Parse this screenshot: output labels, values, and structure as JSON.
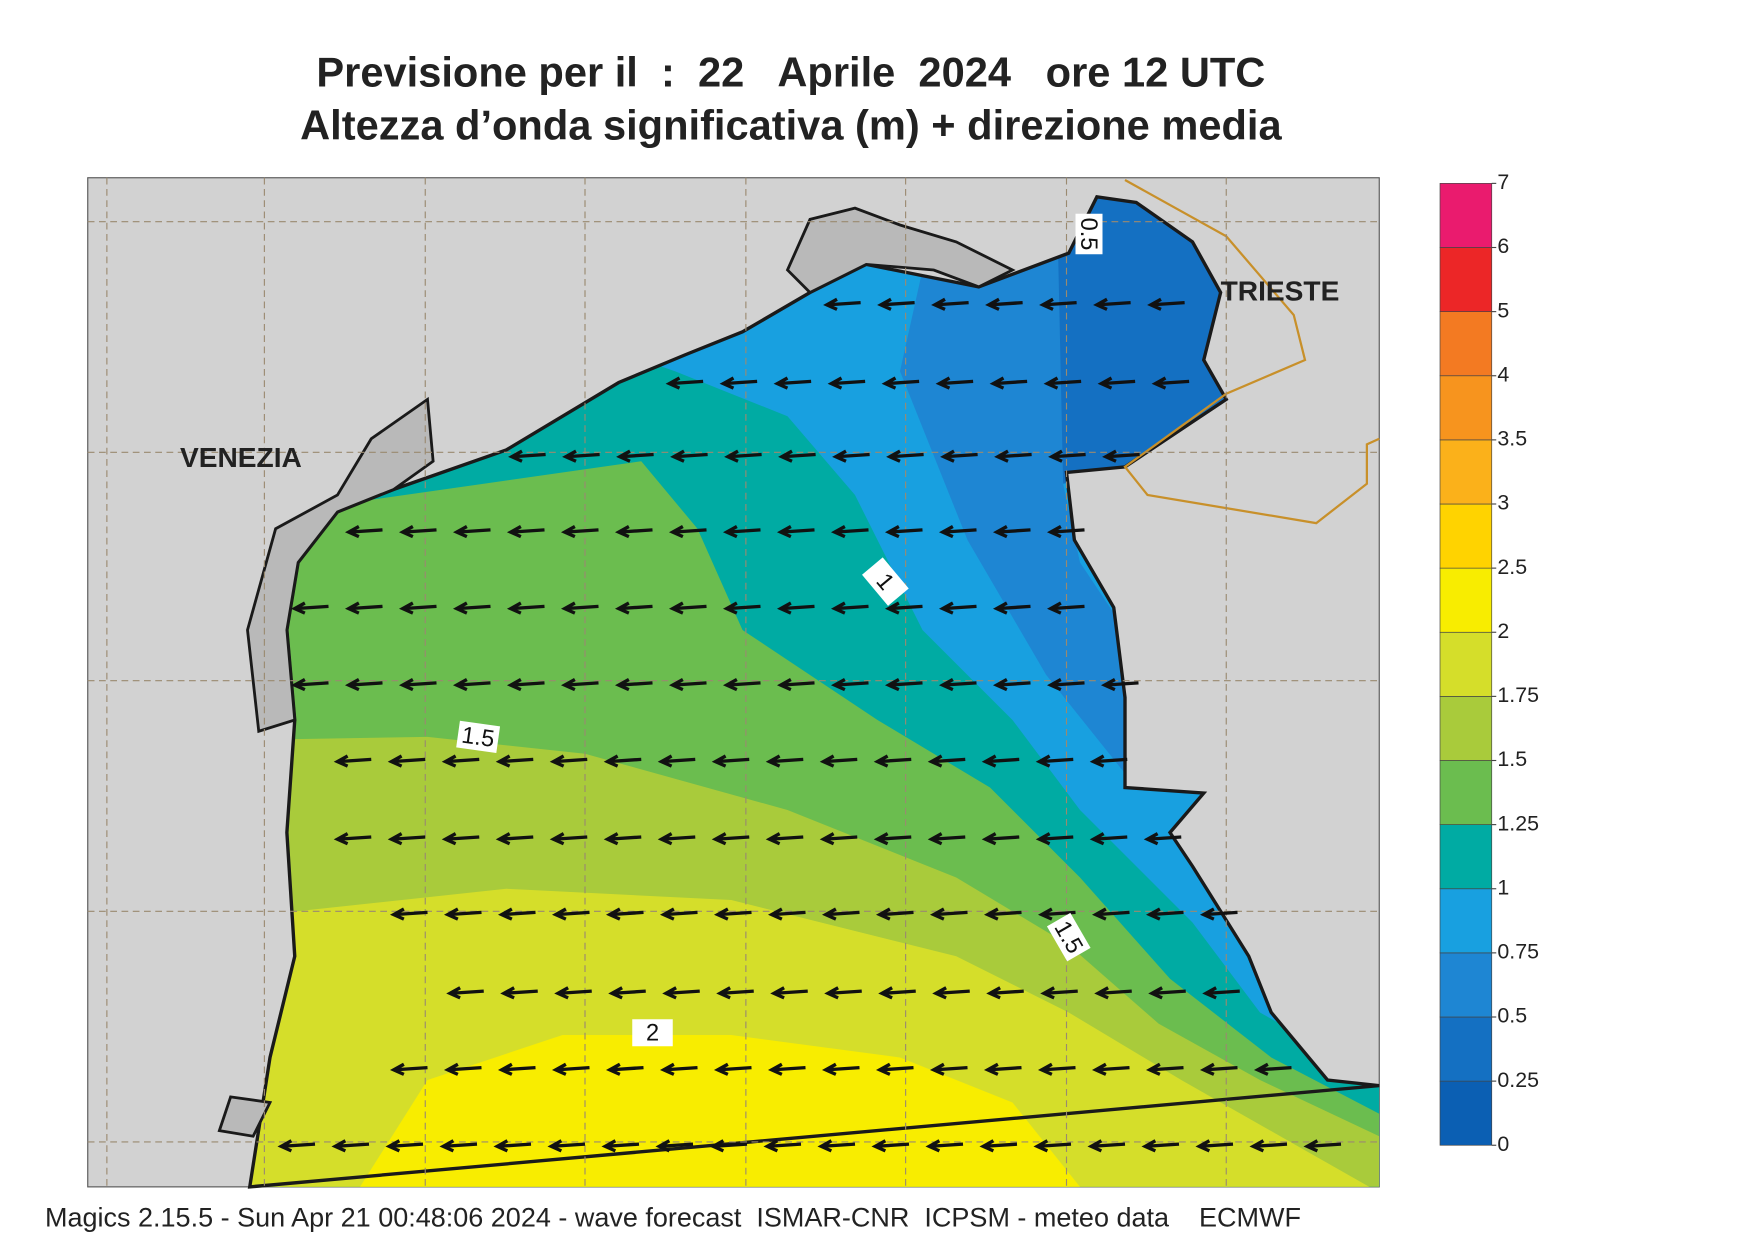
{
  "header": {
    "title_line1": "Previsione per il  :  22   Aprile  2024   ore 12 UTC",
    "title_line2": "Altezza d’onda significativa (m) + direzione media"
  },
  "map": {
    "place_labels": [
      "VENEZIA",
      "TRIESTE"
    ],
    "contour_labels": [
      0.5,
      1,
      1.5,
      1.5,
      2
    ]
  },
  "legend": {
    "levels": [
      0,
      0.25,
      0.5,
      0.75,
      1,
      1.25,
      1.5,
      1.75,
      2,
      2.5,
      3,
      3.5,
      4,
      5,
      6,
      7
    ],
    "colors": [
      "#0b5fb3",
      "#1470c2",
      "#1e86d3",
      "#18a0e0",
      "#00aba3",
      "#6bbd4f",
      "#a9cb3b",
      "#d5de2a",
      "#f8ed00",
      "#ffd300",
      "#fbb11a",
      "#f7941e",
      "#f37a22",
      "#ec2627",
      "#ea1b6e"
    ]
  },
  "footer": "Magics 2.15.5 - Sun Apr 21 00:48:06 2024 - wave forecast  ISMAR-CNR  ICPSM - meteo data    ECMWF"
}
